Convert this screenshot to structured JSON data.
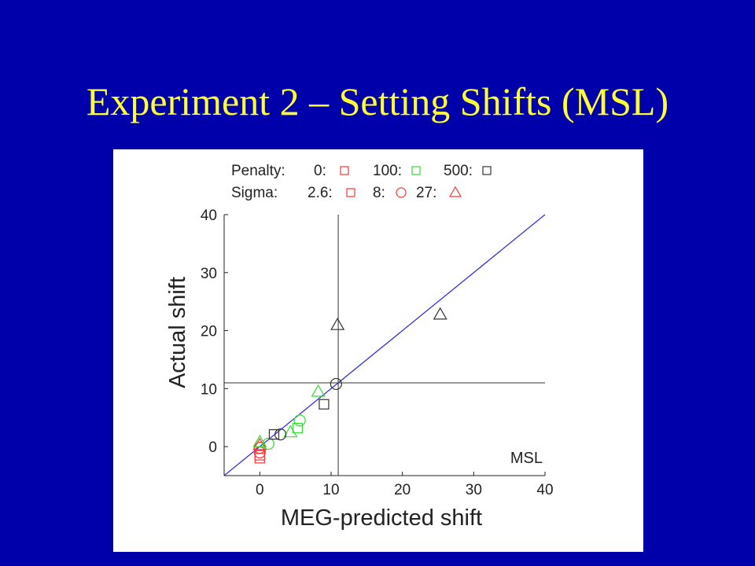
{
  "slide": {
    "title": "Experiment 2 – Setting Shifts (MSL)"
  },
  "chart_data": {
    "type": "scatter",
    "xlabel": "MEG-predicted shift",
    "ylabel": "Actual shift",
    "annotation": "MSL",
    "xlim": [
      -5,
      40
    ],
    "ylim": [
      -5,
      40
    ],
    "xticks": [
      0,
      10,
      20,
      30,
      40
    ],
    "yticks": [
      0,
      10,
      20,
      30,
      40
    ],
    "grid": false,
    "reference_lines": {
      "identity": {
        "from": [
          -5,
          -5
        ],
        "to": [
          40,
          40
        ],
        "color": "#3333dd"
      },
      "vertical_x": 11,
      "horizontal_y": 11
    },
    "legend": {
      "position": "top",
      "penalty_label": "Penalty:",
      "penalty": [
        {
          "label": "0:",
          "color": "#ff3333"
        },
        {
          "label": "100:",
          "color": "#33dd33"
        },
        {
          "label": "500:",
          "color": "#333333"
        }
      ],
      "sigma_label": "Sigma:",
      "sigma": [
        {
          "label": "2.6:",
          "shape": "square"
        },
        {
          "label": "8:",
          "shape": "circle"
        },
        {
          "label": "27:",
          "shape": "triangle"
        }
      ],
      "sigma_color": "#ff3333"
    },
    "colors": {
      "red": "#ff3333",
      "green": "#33dd33",
      "black": "#333333"
    },
    "points": [
      {
        "x": 0,
        "y": -2,
        "penalty": "0",
        "sigma": "2.6",
        "shape": "square",
        "color": "red"
      },
      {
        "x": 0,
        "y": -1.5,
        "penalty": "0",
        "sigma": "2.6",
        "shape": "square",
        "color": "red"
      },
      {
        "x": 0,
        "y": -1,
        "penalty": "0",
        "sigma": "8",
        "shape": "circle",
        "color": "red"
      },
      {
        "x": 0,
        "y": -0.2,
        "penalty": "0",
        "sigma": "8",
        "shape": "circle",
        "color": "red"
      },
      {
        "x": 0,
        "y": 0.3,
        "penalty": "0",
        "sigma": "27",
        "shape": "triangle",
        "color": "red"
      },
      {
        "x": 0,
        "y": 0.8,
        "penalty": "100",
        "sigma": "27",
        "shape": "triangle",
        "color": "green"
      },
      {
        "x": 1.2,
        "y": 0.5,
        "penalty": "100",
        "sigma": "8",
        "shape": "circle",
        "color": "green"
      },
      {
        "x": 4.3,
        "y": 2.5,
        "penalty": "100",
        "sigma": "27",
        "shape": "triangle",
        "color": "green"
      },
      {
        "x": 5.3,
        "y": 3.2,
        "penalty": "100",
        "sigma": "2.6",
        "shape": "square",
        "color": "green"
      },
      {
        "x": 5.6,
        "y": 4.5,
        "penalty": "100",
        "sigma": "8",
        "shape": "circle",
        "color": "green"
      },
      {
        "x": 8.2,
        "y": 9.5,
        "penalty": "100",
        "sigma": "27",
        "shape": "triangle",
        "color": "green"
      },
      {
        "x": 2.0,
        "y": 2.1,
        "penalty": "500",
        "sigma": "2.6",
        "shape": "square",
        "color": "black"
      },
      {
        "x": 2.9,
        "y": 2.1,
        "penalty": "500",
        "sigma": "8",
        "shape": "circle",
        "color": "black"
      },
      {
        "x": 9.0,
        "y": 7.3,
        "penalty": "500",
        "sigma": "2.6",
        "shape": "square",
        "color": "black"
      },
      {
        "x": 10.7,
        "y": 10.8,
        "penalty": "500",
        "sigma": "8",
        "shape": "circle",
        "color": "black"
      },
      {
        "x": 10.9,
        "y": 21.0,
        "penalty": "500",
        "sigma": "27",
        "shape": "triangle",
        "color": "black"
      },
      {
        "x": 25.3,
        "y": 22.8,
        "penalty": "500",
        "sigma": "27",
        "shape": "triangle",
        "color": "black"
      }
    ]
  }
}
